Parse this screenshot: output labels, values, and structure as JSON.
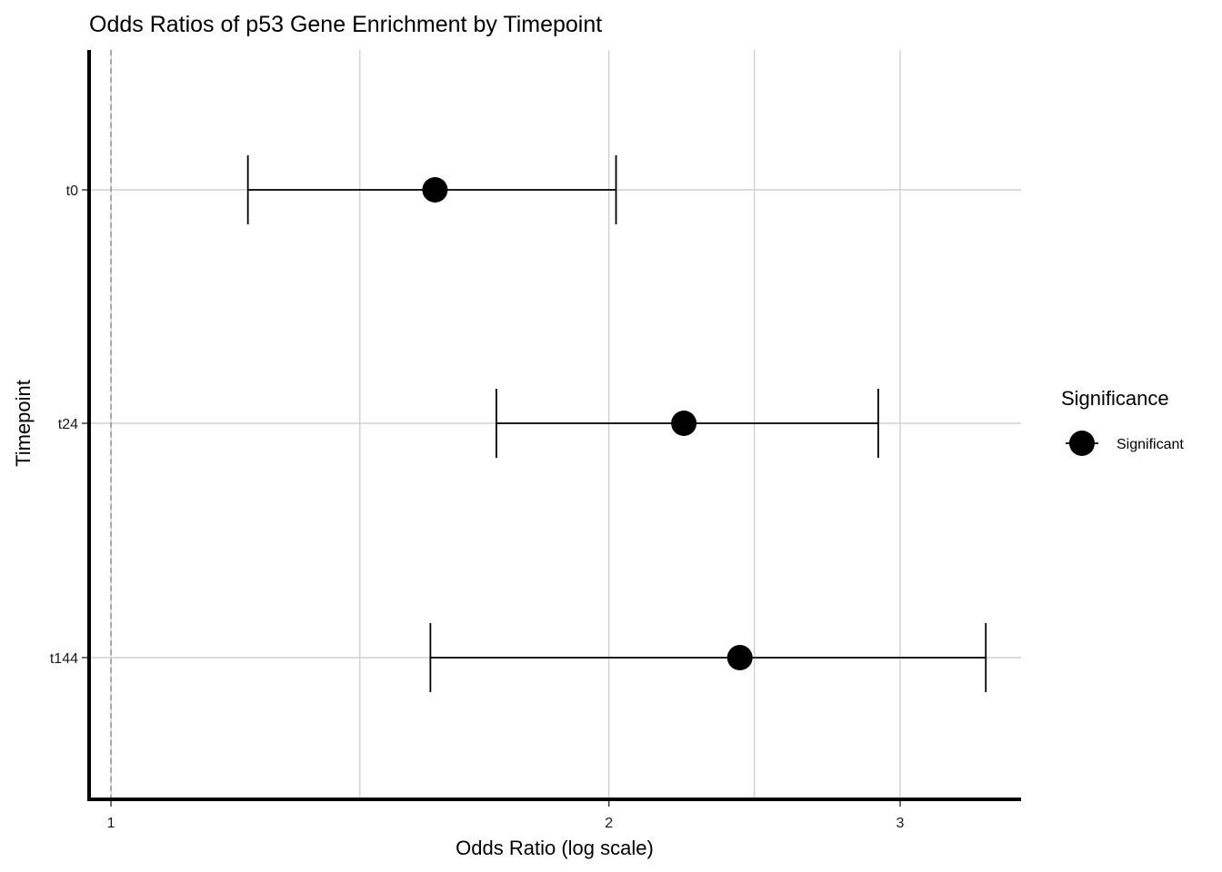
{
  "chart_data": {
    "type": "forest",
    "title": "Odds Ratios of p53 Gene Enrichment by Timepoint",
    "xlabel": "Odds Ratio (log scale)",
    "ylabel": "Timepoint",
    "x_scale": "log",
    "xlim": [
      0.97,
      3.55
    ],
    "x_ticks": [
      1,
      2,
      3
    ],
    "x_tick_labels": [
      "1",
      "2",
      "3"
    ],
    "minor_gridlines_x": [
      1.414,
      2.449
    ],
    "reference_line_x": 1,
    "categories": [
      "t0",
      "t24",
      "t144"
    ],
    "series": [
      {
        "name": "Significant",
        "odds_ratio": [
          1.57,
          2.22,
          2.4
        ],
        "ci_lower": [
          1.21,
          1.71,
          1.56
        ],
        "ci_upper": [
          2.02,
          2.91,
          3.38
        ]
      }
    ],
    "legend": {
      "title": "Significance",
      "position": "right",
      "items": [
        "Significant"
      ]
    },
    "grid": true
  },
  "colors": {
    "points": "#000000",
    "grid": "#d0d0d0",
    "reference_line": "#8c8c8c",
    "axis": "#000000"
  }
}
